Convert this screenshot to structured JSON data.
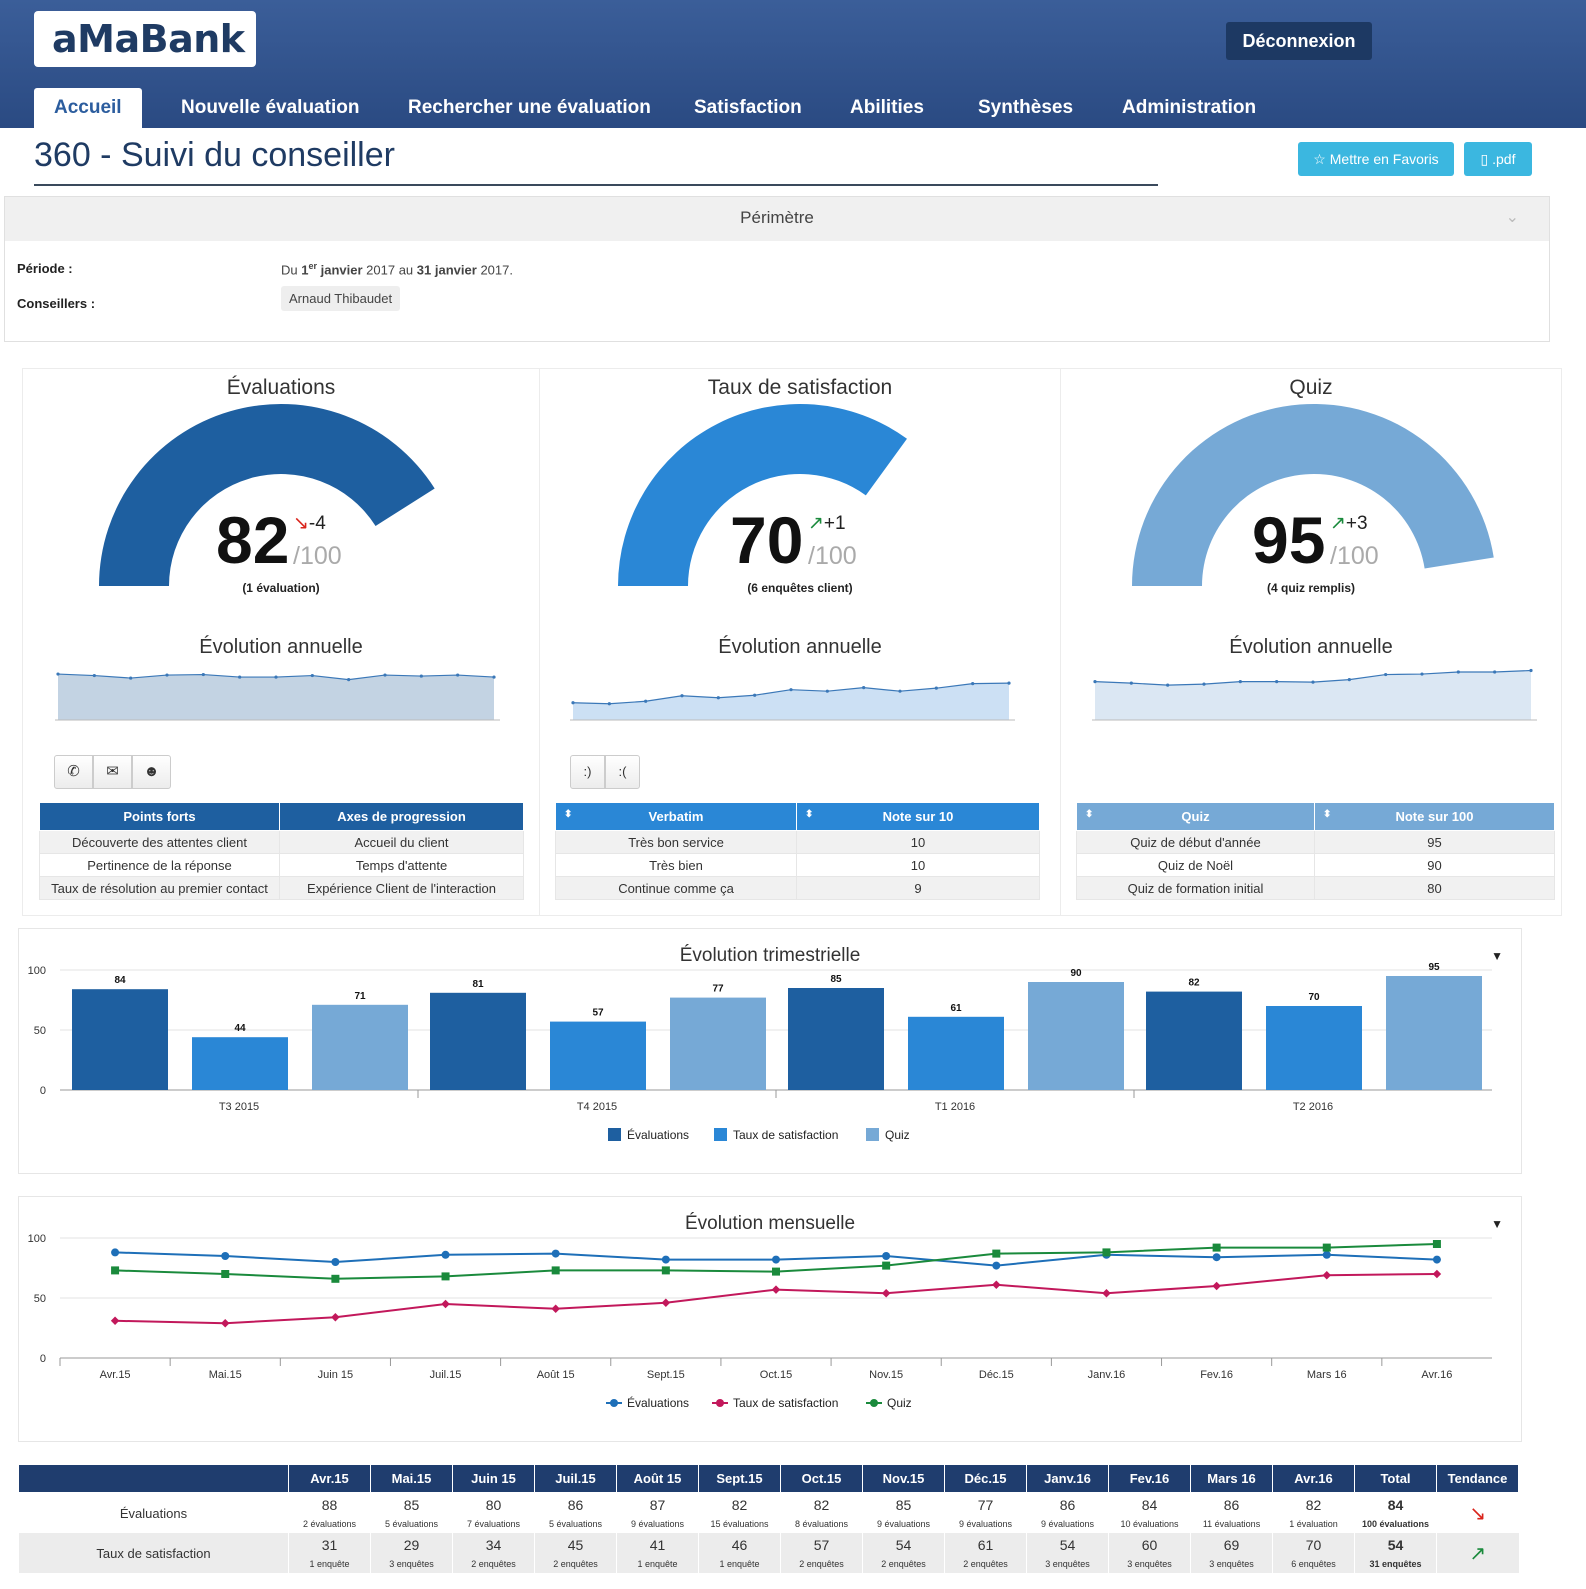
{
  "header": {
    "logo": "aMaBank",
    "logout_label": "Déconnexion",
    "nav": [
      "Accueil",
      "Nouvelle évaluation",
      "Rechercher une évaluation",
      "Satisfaction",
      "Abilities",
      "Synthèses",
      "Administration"
    ]
  },
  "page": {
    "title": "360 - Suivi du conseiller",
    "favorite_label": "Mettre en Favoris",
    "pdf_label": ".pdf"
  },
  "perimetre": {
    "title": "Périmètre",
    "periode_label": "Période :",
    "periode_prefix": "Du",
    "periode_day1": "1",
    "periode_sup": "er",
    "periode_month1": "janvier",
    "periode_year1": "2017 au",
    "periode_day2": "31",
    "periode_month2": "janvier",
    "periode_year2": "2017.",
    "conseillers_label": "Conseillers :",
    "conseiller": "Arnaud Thibaudet"
  },
  "panels": [
    {
      "title": "Évaluations",
      "score": "82",
      "trend": "-4",
      "trend_dir": "down",
      "of": "/100",
      "sub": "(1 évaluation)",
      "gauge_value": 82,
      "color": "#1e5fa0",
      "evolution_title": "Évolution annuelle",
      "spark": [
        88,
        85,
        80,
        86,
        87,
        82,
        82,
        85,
        77,
        86,
        84,
        86,
        82
      ],
      "spark_fill": "#c3d3e3"
    },
    {
      "title": "Taux de satisfaction",
      "score": "70",
      "trend": "+1",
      "trend_dir": "up",
      "of": "/100",
      "sub": "(6 enquêtes client)",
      "gauge_value": 70,
      "color": "#2a87d6",
      "evolution_title": "Évolution annuelle",
      "spark": [
        31,
        29,
        34,
        45,
        41,
        46,
        57,
        54,
        61,
        54,
        60,
        69,
        70
      ],
      "spark_fill": "#cce0f4"
    },
    {
      "title": "Quiz",
      "score": "95",
      "trend": "+3",
      "trend_dir": "up",
      "of": "/100",
      "sub": "(4 quiz remplis)",
      "gauge_value": 95,
      "color": "#76a9d6",
      "evolution_title": "Évolution annuelle",
      "spark": [
        73,
        70,
        66,
        68,
        73,
        73,
        72,
        77,
        87,
        88,
        92,
        92,
        95
      ],
      "spark_fill": "#dbe7f3"
    }
  ],
  "sat_buttons": [
    ":)",
    ":("
  ],
  "table_points": {
    "headers": [
      "Points forts",
      "Axes de progression"
    ],
    "rows": [
      [
        "Découverte des attentes client",
        "Accueil du client"
      ],
      [
        "Pertinence de la réponse",
        "Temps d'attente"
      ],
      [
        "Taux de résolution au premier contact",
        "Expérience Client de l'interaction"
      ]
    ]
  },
  "table_verbatim": {
    "headers": [
      "Verbatim",
      "Note sur 10"
    ],
    "rows": [
      [
        "Très bon service",
        "10"
      ],
      [
        "Très bien",
        "10"
      ],
      [
        "Continue comme ça",
        "9"
      ]
    ]
  },
  "table_quiz": {
    "headers": [
      "Quiz",
      "Note sur 100"
    ],
    "rows": [
      [
        "Quiz de début d'année",
        "95"
      ],
      [
        "Quiz de Noël",
        "90"
      ],
      [
        "Quiz de formation initial",
        "80"
      ]
    ]
  },
  "colors": {
    "evaluations": "#1e5fa0",
    "satisfaction": "#2a87d6",
    "quiz": "#76a9d6",
    "header": "#2f5289",
    "button": "#3bb7e0"
  },
  "chart_data": [
    {
      "type": "bar",
      "title": "Évolution trimestrielle",
      "categories": [
        "T3 2015",
        "T4 2015",
        "T1 2016",
        "T2 2016"
      ],
      "series": [
        {
          "name": "Évaluations",
          "values": [
            84,
            81,
            85,
            82
          ]
        },
        {
          "name": "Taux de satisfaction",
          "values": [
            44,
            57,
            61,
            70
          ]
        },
        {
          "name": "Quiz",
          "values": [
            71,
            77,
            90,
            95
          ]
        }
      ],
      "ylim": [
        0,
        100
      ],
      "yticks": [
        0,
        50,
        100
      ],
      "legend": "bottom"
    },
    {
      "type": "line",
      "title": "Évolution mensuelle",
      "categories": [
        "Avr.15",
        "Mai.15",
        "Juin 15",
        "Juil.15",
        "Août 15",
        "Sept.15",
        "Oct.15",
        "Nov.15",
        "Déc.15",
        "Janv.16",
        "Fev.16",
        "Mars 16",
        "Avr.16"
      ],
      "series": [
        {
          "name": "Évaluations",
          "values": [
            88,
            85,
            80,
            86,
            87,
            82,
            82,
            85,
            77,
            86,
            84,
            86,
            82
          ],
          "color": "#1e6fb8"
        },
        {
          "name": "Taux de satisfaction",
          "values": [
            31,
            29,
            34,
            45,
            41,
            46,
            57,
            54,
            61,
            54,
            60,
            69,
            70
          ],
          "color": "#c2185b"
        },
        {
          "name": "Quiz",
          "values": [
            73,
            70,
            66,
            68,
            73,
            73,
            72,
            77,
            87,
            88,
            92,
            92,
            95
          ],
          "color": "#1a8a3c"
        }
      ],
      "ylim": [
        0,
        100
      ],
      "yticks": [
        0,
        50,
        100
      ],
      "legend": "bottom"
    }
  ],
  "bottom_table": {
    "headers": [
      "",
      "Avr.15",
      "Mai.15",
      "Juin 15",
      "Juil.15",
      "Août 15",
      "Sept.15",
      "Oct.15",
      "Nov.15",
      "Déc.15",
      "Janv.16",
      "Fev.16",
      "Mars 16",
      "Avr.16",
      "Total",
      "Tendance"
    ],
    "rows": [
      {
        "label": "Évaluations",
        "values": [
          "88",
          "85",
          "80",
          "86",
          "87",
          "82",
          "82",
          "85",
          "77",
          "86",
          "84",
          "86",
          "82",
          "84"
        ],
        "subs": [
          "2 évaluations",
          "5 évaluations",
          "7 évaluations",
          "5 évaluations",
          "9 évaluations",
          "15 évaluations",
          "8 évaluations",
          "9 évaluations",
          "9 évaluations",
          "9 évaluations",
          "10 évaluations",
          "11 évaluations",
          "1 évaluation",
          "100 évaluations"
        ],
        "trend": "down"
      },
      {
        "label": "Taux de satisfaction",
        "values": [
          "31",
          "29",
          "34",
          "45",
          "41",
          "46",
          "57",
          "54",
          "61",
          "54",
          "60",
          "69",
          "70",
          "54"
        ],
        "subs": [
          "1 enquête",
          "3 enquêtes",
          "2 enquêtes",
          "2 enquêtes",
          "1 enquête",
          "1 enquête",
          "2 enquêtes",
          "2 enquêtes",
          "2 enquêtes",
          "3 enquêtes",
          "3 enquêtes",
          "3 enquêtes",
          "6 enquêtes",
          "31 enquêtes"
        ],
        "trend": "up"
      }
    ]
  }
}
